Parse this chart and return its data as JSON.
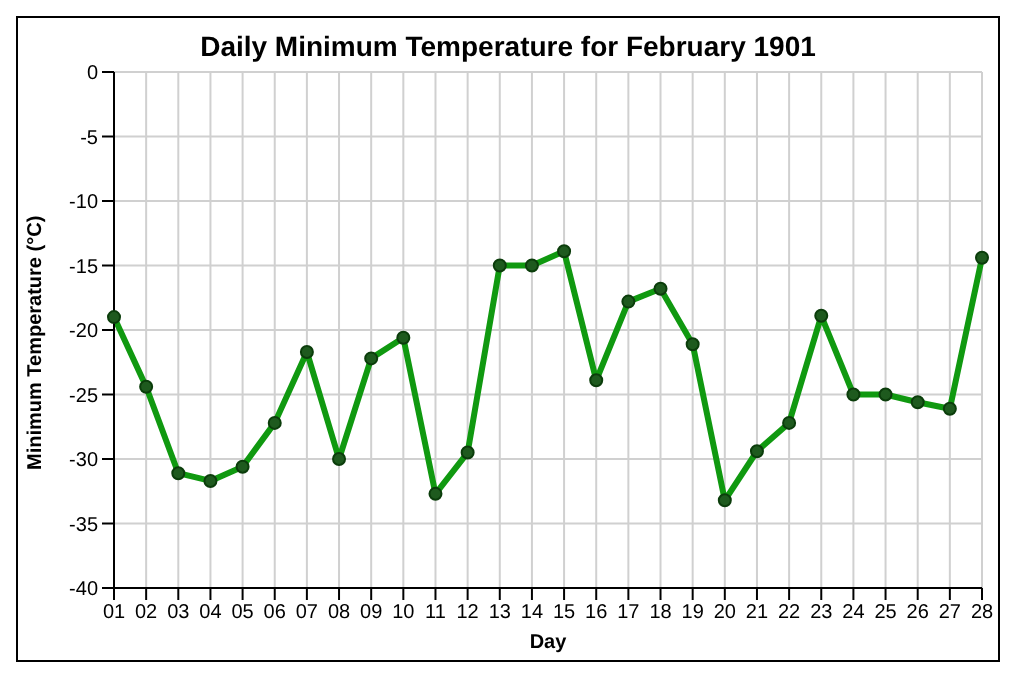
{
  "chart_data": {
    "type": "line",
    "title": "Daily Minimum Temperature for February 1901",
    "xlabel": "Day",
    "ylabel": "Minimum Temperature (°C)",
    "categories": [
      "01",
      "02",
      "03",
      "04",
      "05",
      "06",
      "07",
      "08",
      "09",
      "10",
      "11",
      "12",
      "13",
      "14",
      "15",
      "16",
      "17",
      "18",
      "19",
      "20",
      "21",
      "22",
      "23",
      "24",
      "25",
      "26",
      "27",
      "28"
    ],
    "series": [
      {
        "color": "#109910",
        "values": [
          -19.0,
          -24.4,
          -31.1,
          -31.7,
          -30.6,
          -27.2,
          -21.7,
          -30.0,
          -22.2,
          -20.6,
          -32.7,
          -29.5,
          -15.0,
          -15.0,
          -13.9,
          -23.9,
          -17.8,
          -16.8,
          -21.1,
          -33.2,
          -29.4,
          -27.2,
          -18.9,
          -25.0,
          -25.0,
          -25.6,
          -26.1,
          -14.4
        ]
      }
    ],
    "ylim": [
      -40,
      0
    ],
    "yticks": [
      -40,
      -35,
      -30,
      -25,
      -20,
      -15,
      -10,
      -5,
      0
    ],
    "grid": true,
    "marker": "circle",
    "line_style": "solid",
    "legend": false
  }
}
